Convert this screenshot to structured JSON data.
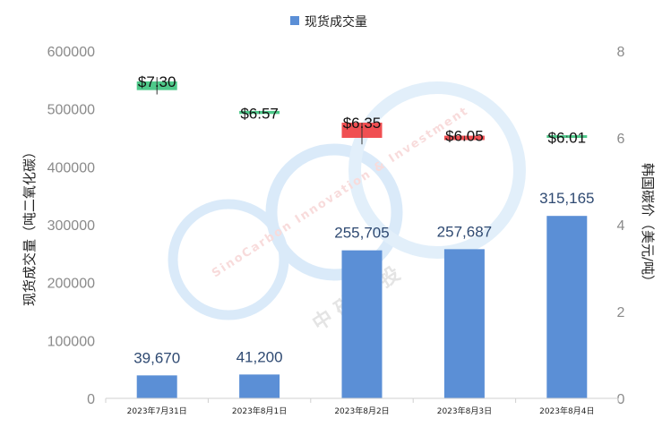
{
  "chart_data": {
    "type": "bar",
    "categories": [
      "2023年7月31日",
      "2023年8月1日",
      "2023年8月2日",
      "2023年8月3日",
      "2023年8月4日"
    ],
    "series": [
      {
        "name": "现货成交量",
        "values": [
          39670,
          41200,
          255705,
          257687,
          315165
        ],
        "color": "#5b8fd6",
        "labels": [
          "39,670",
          "41,200",
          "255,705",
          "257,687",
          "315,165"
        ]
      }
    ],
    "price_series": {
      "type": "candlestick",
      "values": [
        7.3,
        6.57,
        6.35,
        6.05,
        6.01
      ],
      "labels": [
        "$7.30",
        "$6.57",
        "$6.35",
        "$6.05",
        "$6.01"
      ],
      "open": [
        7.1,
        6.55,
        6.35,
        6.05,
        6.01
      ],
      "close": [
        7.3,
        6.62,
        6.0,
        5.95,
        6.05
      ],
      "high": [
        7.4,
        6.62,
        6.35,
        6.05,
        6.05
      ],
      "low": [
        7.0,
        6.55,
        5.85,
        5.95,
        6.01
      ],
      "up_color": "#4fc98a",
      "down_color": "#f04f52"
    },
    "ylabel": "现货成交量（吨二氧化碳）",
    "y2label": "韩国碳价（美元/吨）",
    "ylim": [
      0,
      600000
    ],
    "y2lim": [
      0,
      8
    ],
    "yticks": [
      "600000",
      "500000",
      "400000",
      "300000",
      "200000",
      "100000",
      "0"
    ],
    "y2ticks": [
      "8",
      "6",
      "4",
      "2",
      "0"
    ],
    "legend": {
      "label": "现货成交量",
      "position": "top"
    },
    "grid": false
  },
  "watermark": {
    "text": "SinoCarbon Innovation & Investment",
    "cn": "中 碳 创 投"
  }
}
